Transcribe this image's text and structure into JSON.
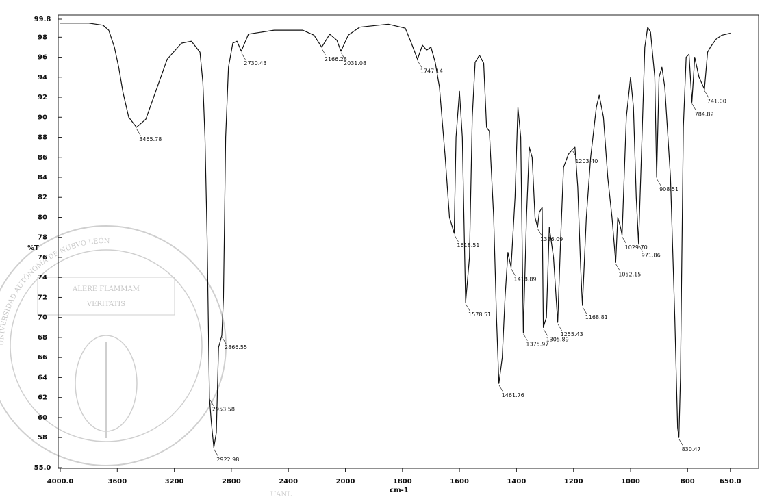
{
  "watermark": {
    "text": "UANL",
    "seal_text": "UNIVERSIDAD AUTÓNOMA DE NUEVO LEÓN",
    "motto_1": "ALERE FLAMMAM",
    "motto_2": "VERITATIS"
  },
  "chart_data": {
    "type": "line",
    "x_label": "cm-1",
    "y_label": "%T",
    "color": "#111111",
    "xlim": [
      4000,
      650
    ],
    "ylim": [
      55,
      99.8
    ],
    "xticks": [
      {
        "value": 4000,
        "label": "4000.0"
      },
      3600,
      3200,
      2800,
      2400,
      2000,
      1800,
      1600,
      1400,
      1200,
      1000,
      800,
      {
        "value": 650,
        "label": "650.0"
      }
    ],
    "yticks": [
      {
        "value": 55,
        "label": "55.0"
      },
      58,
      60,
      62,
      64,
      66,
      68,
      70,
      72,
      74,
      76,
      78,
      80,
      82,
      84,
      86,
      88,
      90,
      92,
      94,
      96,
      98,
      {
        "value": 99.8,
        "label": "99.8"
      }
    ],
    "x": [
      4000,
      3800,
      3700,
      3660,
      3620,
      3590,
      3560,
      3520,
      3465.78,
      3400,
      3320,
      3250,
      3150,
      3080,
      3020,
      3000,
      2985,
      2970,
      2962,
      2953.58,
      2940,
      2922.98,
      2905,
      2890,
      2866.55,
      2855,
      2840,
      2820,
      2790,
      2760,
      2730.43,
      2680,
      2500,
      2300,
      2220,
      2166.23,
      2110,
      2060,
      2031.08,
      1990,
      1950,
      1850,
      1790,
      1770,
      1747.14,
      1730,
      1715,
      1700,
      1685,
      1670,
      1650,
      1635,
      1618.51,
      1612,
      1600,
      1590,
      1578.51,
      1565,
      1555,
      1545,
      1530,
      1515,
      1505,
      1495,
      1480,
      1470,
      1461.76,
      1450,
      1440,
      1430,
      1418.89,
      1405,
      1395,
      1385,
      1375.97,
      1365,
      1355,
      1345,
      1335,
      1326.09,
      1320,
      1310,
      1305.89,
      1295,
      1285,
      1270,
      1255.43,
      1245,
      1235,
      1218,
      1203.4,
      1195,
      1185,
      1175,
      1168.81,
      1155,
      1140,
      1120,
      1110,
      1095,
      1080,
      1065,
      1052.15,
      1045,
      1035,
      1029.7,
      1015,
      1000,
      990,
      980,
      971.86,
      960,
      950,
      940,
      930,
      915,
      908.51,
      900,
      890,
      880,
      860,
      845,
      835,
      830.47,
      825,
      815,
      805,
      795,
      784.82,
      775,
      760,
      741,
      730,
      720,
      700,
      680,
      650
    ],
    "values": [
      99.4,
      99.4,
      99.2,
      98.7,
      97.0,
      95.0,
      92.5,
      90.0,
      89.0,
      89.8,
      93.0,
      95.8,
      97.4,
      97.6,
      96.5,
      93.5,
      88,
      78,
      70,
      62.0,
      59.5,
      57.0,
      58.5,
      67,
      68.2,
      72,
      88,
      95,
      97.4,
      97.6,
      96.6,
      98.3,
      98.7,
      98.7,
      98.2,
      97.0,
      98.3,
      97.7,
      96.6,
      98.2,
      99.0,
      99.3,
      98.9,
      97.5,
      95.8,
      97.2,
      96.7,
      97.0,
      95.5,
      93.0,
      86.0,
      80.0,
      78.4,
      88,
      92.6,
      88,
      71.5,
      76,
      90,
      95.5,
      96.2,
      95.4,
      89,
      88.6,
      80,
      70,
      63.4,
      66,
      72,
      76.5,
      75.0,
      82,
      91,
      88,
      68.5,
      80,
      87,
      86,
      80,
      79.0,
      80.5,
      81,
      69.0,
      70,
      79,
      76,
      69.5,
      78,
      85,
      86.3,
      86.8,
      87,
      83,
      75,
      71.2,
      80,
      86,
      91,
      92.2,
      90,
      84,
      80,
      75.5,
      80,
      79,
      78.2,
      90,
      94.0,
      91,
      82,
      77.4,
      88,
      97,
      99.0,
      98.5,
      94,
      84.0,
      94,
      95,
      93,
      84,
      70,
      59,
      58.0,
      64,
      89,
      96,
      96.3,
      91.5,
      96.0,
      94,
      92.8,
      96.5,
      97.0,
      97.8,
      98.2,
      98.4
    ],
    "annotations": [
      {
        "x": 3465.78,
        "y": 89.0,
        "label": "3465.78"
      },
      {
        "x": 2953.58,
        "y": 62.0,
        "label": "2953.58"
      },
      {
        "x": 2922.98,
        "y": 57.0,
        "label": "2922.98"
      },
      {
        "x": 2866.55,
        "y": 68.2,
        "label": "2866.55"
      },
      {
        "x": 2730.43,
        "y": 96.6,
        "label": "2730.43"
      },
      {
        "x": 2166.23,
        "y": 97.0,
        "label": "2166.23"
      },
      {
        "x": 2031.08,
        "y": 96.6,
        "label": "2031.08"
      },
      {
        "x": 1747.14,
        "y": 95.8,
        "label": "1747.14"
      },
      {
        "x": 1618.51,
        "y": 78.4,
        "label": "1618.51"
      },
      {
        "x": 1578.51,
        "y": 71.5,
        "label": "1578.51"
      },
      {
        "x": 1461.76,
        "y": 63.4,
        "label": "1461.76"
      },
      {
        "x": 1418.89,
        "y": 75.0,
        "label": "1418.89"
      },
      {
        "x": 1375.97,
        "y": 68.5,
        "label": "1375.97"
      },
      {
        "x": 1326.09,
        "y": 79.0,
        "label": "1326.09"
      },
      {
        "x": 1305.89,
        "y": 69.0,
        "label": "1305.89"
      },
      {
        "x": 1255.43,
        "y": 69.5,
        "label": "1255.43"
      },
      {
        "x": 1203.4,
        "y": 86.8,
        "label": "1203.40"
      },
      {
        "x": 1168.81,
        "y": 71.2,
        "label": "1168.81"
      },
      {
        "x": 1052.15,
        "y": 75.5,
        "label": "1052.15"
      },
      {
        "x": 1029.7,
        "y": 78.2,
        "label": "1029.70"
      },
      {
        "x": 971.86,
        "y": 77.4,
        "label": "971.86"
      },
      {
        "x": 908.51,
        "y": 84.0,
        "label": "908.51"
      },
      {
        "x": 830.47,
        "y": 58.0,
        "label": "830.47"
      },
      {
        "x": 784.82,
        "y": 91.5,
        "label": "784.82"
      },
      {
        "x": 741,
        "y": 92.8,
        "label": "741.00"
      }
    ]
  }
}
